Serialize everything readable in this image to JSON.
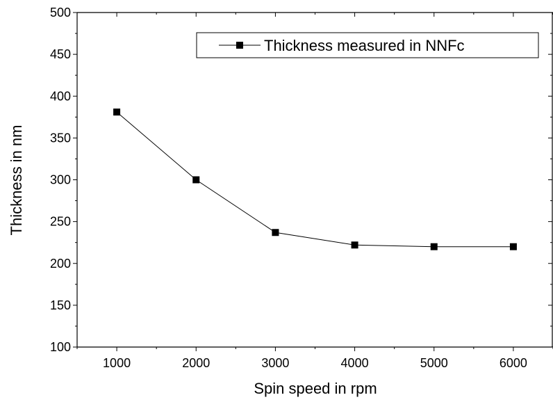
{
  "chart_data": {
    "type": "line",
    "title": "",
    "xlabel": "Spin speed in rpm",
    "ylabel": "Thickness in nm",
    "x": [
      1000,
      2000,
      3000,
      4000,
      5000,
      6000
    ],
    "xlim": [
      500,
      6500
    ],
    "ylim": [
      100,
      500
    ],
    "x_ticks": [
      "1000",
      "2000",
      "3000",
      "4000",
      "5000",
      "6000"
    ],
    "y_ticks": [
      "100",
      "150",
      "200",
      "250",
      "300",
      "350",
      "400",
      "450",
      "500"
    ],
    "series": [
      {
        "name": "Thickness measured in NNFc",
        "values": [
          381,
          300,
          237,
          222,
          220,
          220
        ],
        "marker": "square",
        "color": "#000000"
      }
    ],
    "grid": false,
    "legend_position": "top-right"
  }
}
